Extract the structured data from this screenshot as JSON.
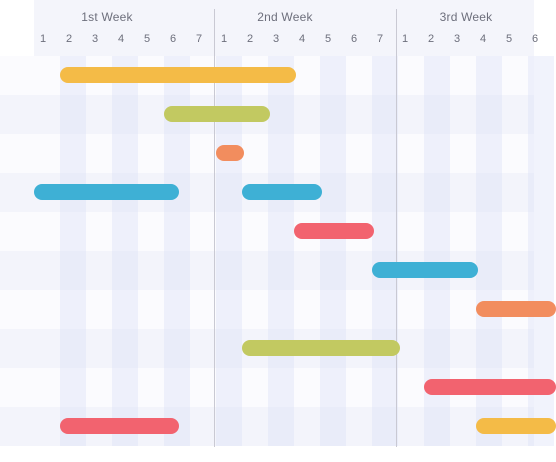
{
  "weeks": [
    "1st Week",
    "2nd Week",
    "3rd Week"
  ],
  "days": [
    "1",
    "2",
    "3",
    "4",
    "5",
    "6",
    "7",
    "1",
    "2",
    "3",
    "4",
    "5",
    "6",
    "7",
    "1",
    "2",
    "3",
    "4",
    "5",
    "6"
  ],
  "colors": {
    "yellow": "#f4bb47",
    "olive": "#c2c961",
    "orange": "#f28d5e",
    "blue": "#3eb0d5",
    "red": "#f2636f"
  },
  "tasks": [
    {
      "row": 0,
      "start": 2,
      "end": 11,
      "color": "yellow"
    },
    {
      "row": 1,
      "start": 6,
      "end": 10,
      "color": "olive"
    },
    {
      "row": 2,
      "start": 8,
      "end": 9,
      "color": "orange"
    },
    {
      "row": 3,
      "start": 1,
      "end": 6.5,
      "color": "blue"
    },
    {
      "row": 3,
      "start": 9,
      "end": 12,
      "color": "blue"
    },
    {
      "row": 4,
      "start": 11,
      "end": 14,
      "color": "red"
    },
    {
      "row": 5,
      "start": 14,
      "end": 18,
      "color": "blue"
    },
    {
      "row": 6,
      "start": 18,
      "end": 21,
      "color": "orange"
    },
    {
      "row": 7,
      "start": 9,
      "end": 15,
      "color": "olive"
    },
    {
      "row": 8,
      "start": 16,
      "end": 21,
      "color": "red"
    },
    {
      "row": 9,
      "start": 2,
      "end": 6.5,
      "color": "red"
    },
    {
      "row": 9,
      "start": 18,
      "end": 21,
      "color": "yellow"
    }
  ]
}
